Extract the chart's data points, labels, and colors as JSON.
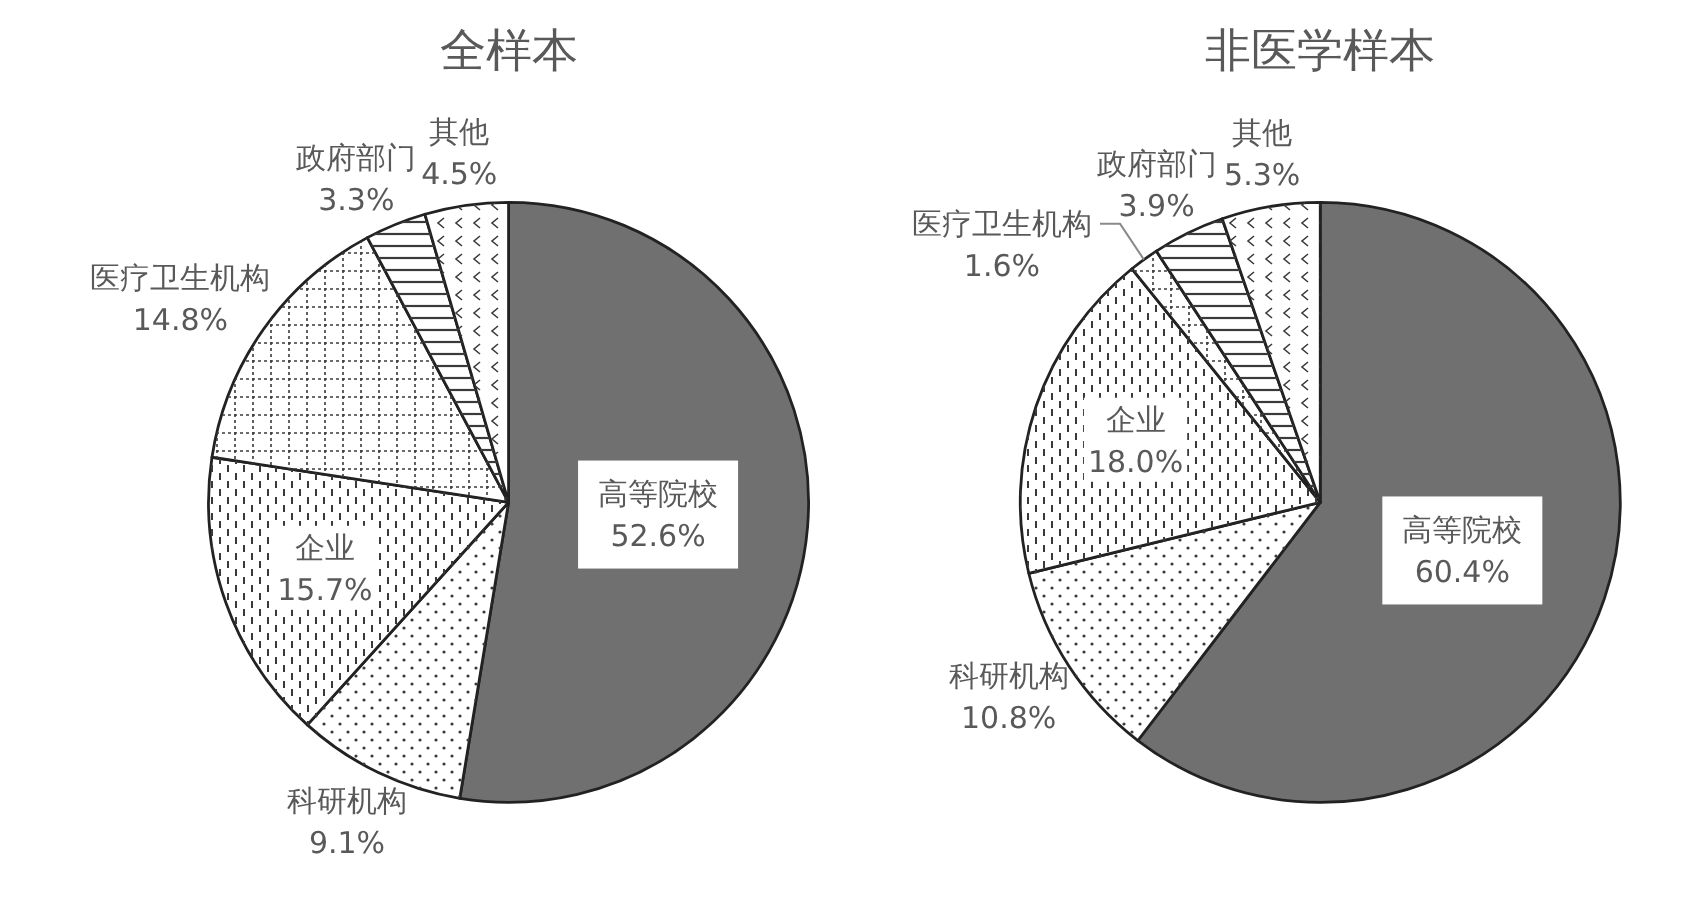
{
  "chart_data": [
    {
      "type": "pie",
      "title": "全样本",
      "categories": [
        "高等院校",
        "科研机构",
        "企业",
        "医疗卫生机构",
        "政府部门",
        "其他"
      ],
      "values": [
        52.6,
        9.1,
        15.7,
        14.8,
        3.3,
        4.5
      ],
      "colors": [
        "#707070",
        "#ffffff",
        "#ffffff",
        "#ffffff",
        "#ffffff",
        "#ffffff"
      ],
      "value_labels": [
        "52.6%",
        "9.1%",
        "15.7%",
        "14.8%",
        "3.3%",
        "4.5%"
      ]
    },
    {
      "type": "pie",
      "title": "非医学样本",
      "categories": [
        "高等院校",
        "科研机构",
        "企业",
        "医疗卫生机构",
        "政府部门",
        "其他"
      ],
      "values": [
        60.4,
        10.8,
        18.0,
        1.6,
        3.9,
        5.3
      ],
      "colors": [
        "#707070",
        "#ffffff",
        "#ffffff",
        "#ffffff",
        "#ffffff",
        "#ffffff"
      ],
      "value_labels": [
        "60.4%",
        "10.8%",
        "18.0%",
        "1.6%",
        "3.9%",
        "5.3%"
      ]
    }
  ]
}
